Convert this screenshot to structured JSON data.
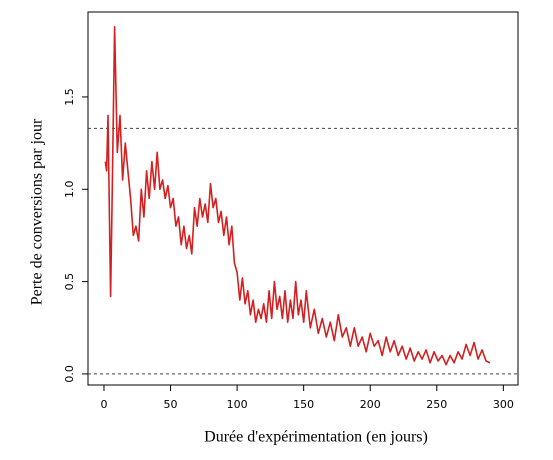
{
  "chart_data": {
    "type": "line",
    "x_label": "Durée d'expérimentation (en jours)",
    "y_label": "Perte de conversions par jour",
    "color": "#d42020",
    "reference_lines": [
      1.33,
      0
    ],
    "xlim": [
      -12,
      311
    ],
    "xticks": [
      0,
      50,
      100,
      150,
      200,
      250,
      300
    ],
    "ylim": [
      -0.06,
      1.96
    ],
    "yticks": [
      {
        "value": 0,
        "label": "0.0"
      },
      0.5,
      {
        "value": 1,
        "label": "1.0"
      },
      1.5
    ],
    "x": [
      1,
      2,
      3,
      5,
      6,
      8,
      10,
      12,
      14,
      16,
      18,
      20,
      22,
      24,
      26,
      28,
      30,
      32,
      34,
      36,
      38,
      40,
      42,
      44,
      46,
      48,
      50,
      52,
      54,
      56,
      58,
      60,
      62,
      64,
      66,
      68,
      70,
      72,
      74,
      76,
      78,
      80,
      82,
      84,
      86,
      88,
      90,
      92,
      94,
      96,
      98,
      100,
      102,
      104,
      106,
      108,
      110,
      112,
      114,
      116,
      118,
      120,
      122,
      124,
      126,
      128,
      130,
      132,
      134,
      136,
      138,
      140,
      142,
      144,
      146,
      148,
      150,
      152,
      155,
      158,
      161,
      164,
      167,
      170,
      173,
      176,
      179,
      182,
      185,
      188,
      191,
      194,
      197,
      200,
      203,
      206,
      209,
      212,
      215,
      218,
      221,
      224,
      227,
      230,
      233,
      236,
      239,
      242,
      245,
      248,
      251,
      254,
      257,
      260,
      263,
      266,
      269,
      272,
      275,
      278,
      281,
      284,
      287,
      290
    ],
    "values": [
      1.15,
      1.1,
      1.4,
      0.42,
      0.9,
      1.88,
      1.2,
      1.4,
      1.05,
      1.25,
      1.1,
      0.95,
      0.75,
      0.8,
      0.72,
      1.0,
      0.85,
      1.1,
      0.95,
      1.15,
      1.0,
      1.2,
      1.0,
      1.05,
      0.95,
      1.02,
      0.9,
      0.95,
      0.8,
      0.85,
      0.7,
      0.8,
      0.68,
      0.75,
      0.65,
      0.9,
      0.8,
      0.95,
      0.85,
      0.92,
      0.82,
      1.03,
      0.9,
      0.95,
      0.82,
      0.88,
      0.75,
      0.85,
      0.7,
      0.8,
      0.6,
      0.55,
      0.4,
      0.52,
      0.38,
      0.45,
      0.32,
      0.4,
      0.28,
      0.35,
      0.3,
      0.38,
      0.28,
      0.45,
      0.3,
      0.5,
      0.35,
      0.42,
      0.3,
      0.45,
      0.28,
      0.4,
      0.3,
      0.5,
      0.32,
      0.4,
      0.28,
      0.45,
      0.25,
      0.35,
      0.22,
      0.3,
      0.2,
      0.28,
      0.18,
      0.32,
      0.2,
      0.25,
      0.15,
      0.25,
      0.15,
      0.2,
      0.12,
      0.22,
      0.15,
      0.18,
      0.1,
      0.2,
      0.12,
      0.18,
      0.1,
      0.15,
      0.08,
      0.14,
      0.07,
      0.12,
      0.08,
      0.13,
      0.06,
      0.12,
      0.07,
      0.1,
      0.05,
      0.1,
      0.06,
      0.12,
      0.08,
      0.16,
      0.1,
      0.17,
      0.08,
      0.13,
      0.07,
      0.06
    ]
  }
}
